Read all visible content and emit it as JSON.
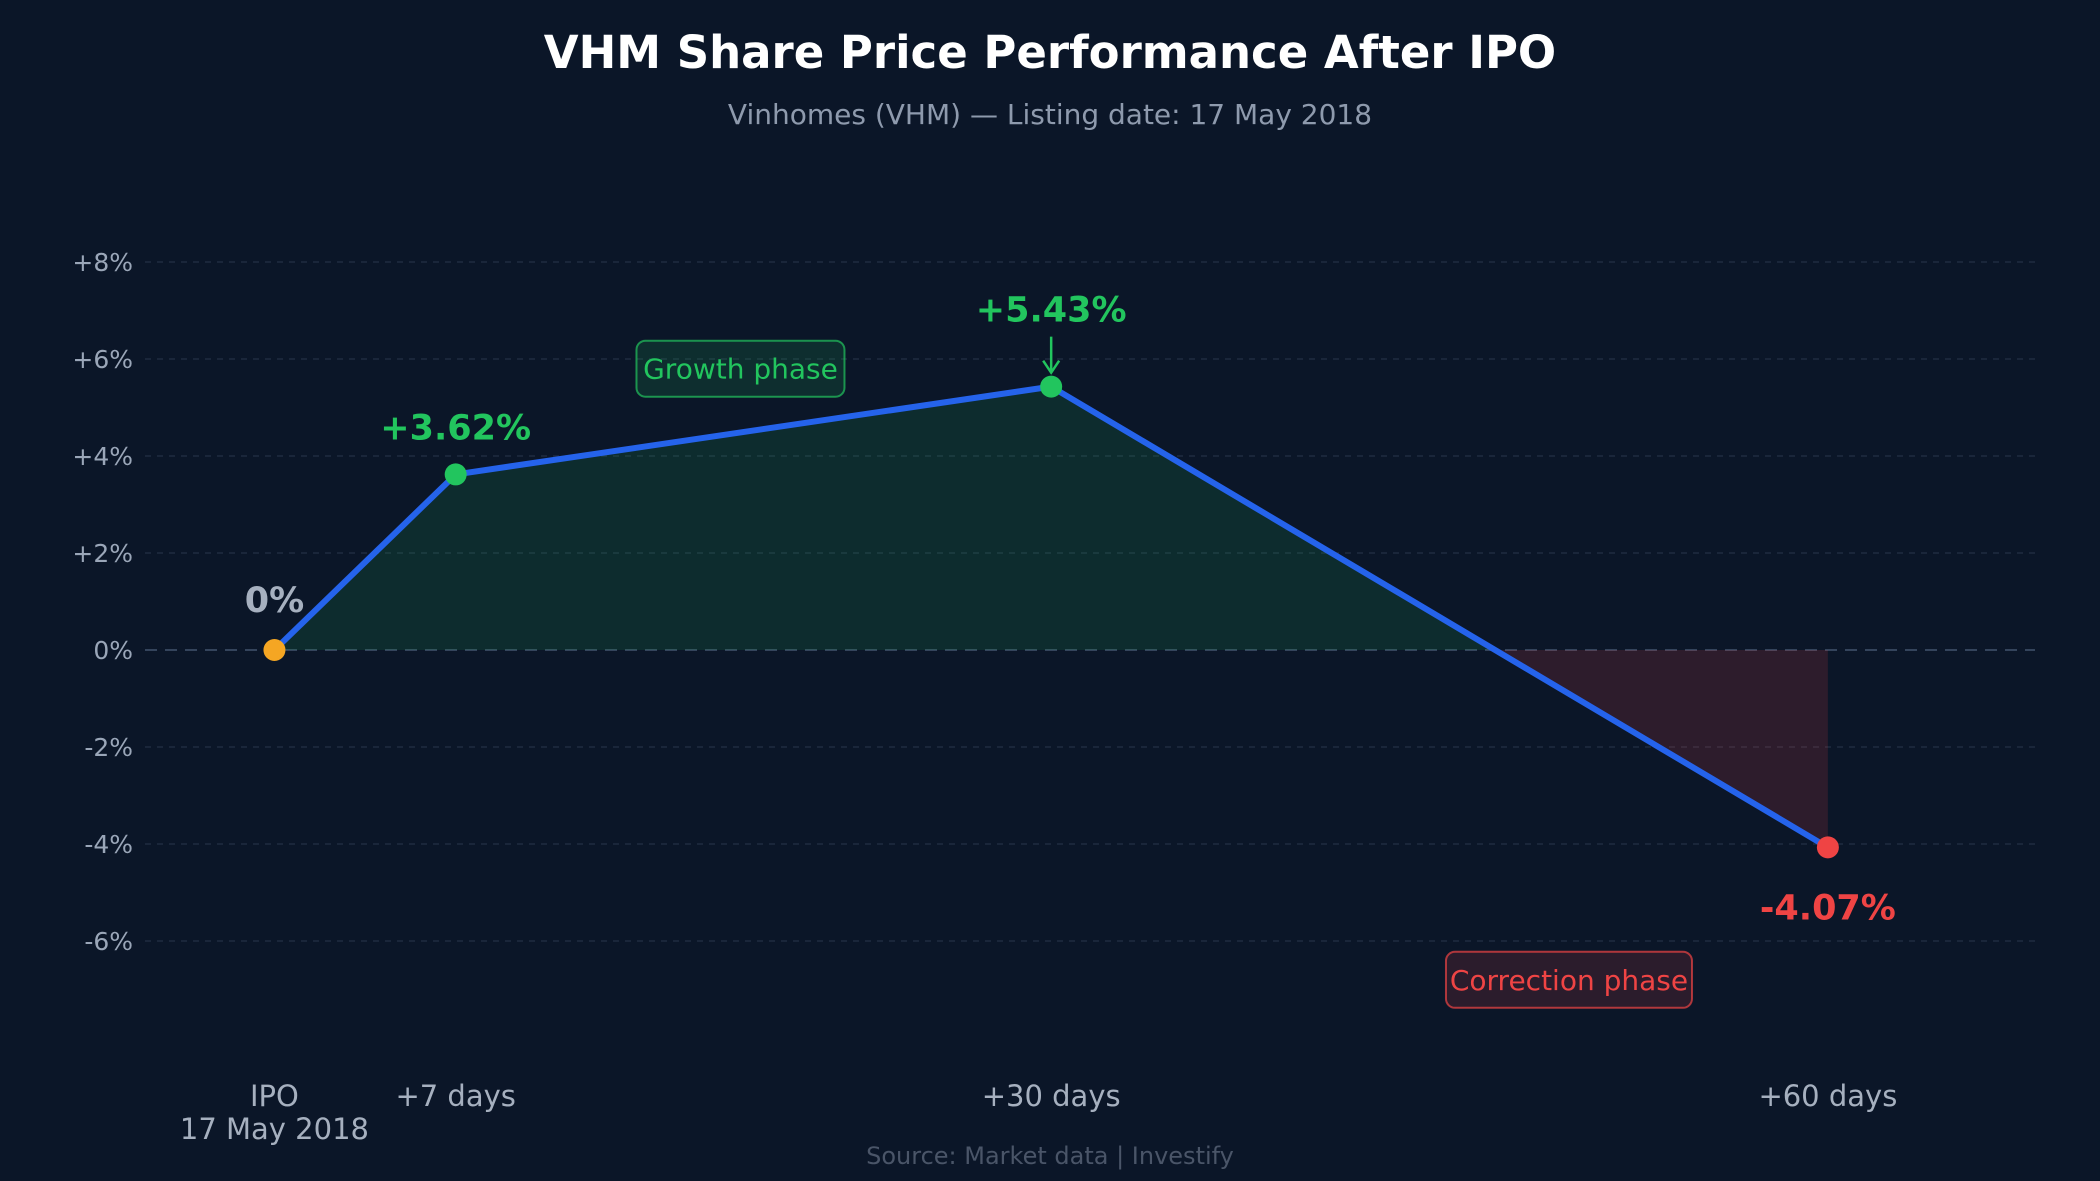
{
  "chart_data": {
    "type": "line",
    "title": "VHM Share Price Performance After IPO",
    "subtitle": "Vinhomes (VHM) — Listing date: 17 May 2018",
    "x": [
      0,
      7,
      30,
      60
    ],
    "x_labels": [
      [
        "IPO",
        "17 May 2018"
      ],
      [
        "+7 days"
      ],
      [
        "+30 days"
      ],
      [
        "+60 days"
      ]
    ],
    "series": [
      {
        "values": [
          0,
          3.62,
          5.43,
          -4.07
        ]
      }
    ],
    "data_labels": [
      "0%",
      "+3.62%",
      "+5.43%",
      "-4.07%"
    ],
    "point_colors": [
      "#f5a623",
      "#22c55e",
      "#22c55e",
      "#ef4444"
    ],
    "ylim": [
      -6,
      8
    ],
    "yticks": [
      8,
      6,
      4,
      2,
      0,
      -2,
      -4,
      -6
    ],
    "ytick_labels": [
      "+8%",
      "+6%",
      "+4%",
      "+2%",
      "0%",
      "-2%",
      "-4%",
      "-6%"
    ],
    "xlim": [
      -5,
      68
    ],
    "grid": true,
    "annotations": [
      {
        "text": "Growth phase",
        "color": "#22c55e",
        "x": 18,
        "y": 5.8
      },
      {
        "text": "Correction phase",
        "color": "#ef4444",
        "x": 50,
        "y": -6.8
      }
    ],
    "source": "Source: Market data  |  Investify",
    "colors": {
      "background": "#0b1628",
      "line": "#2563eb",
      "positive": "#22c55e",
      "negative": "#ef4444",
      "neutral_label": "#a6b0bf",
      "grid": "#1f2c40",
      "zero_line": "#34445c"
    }
  }
}
